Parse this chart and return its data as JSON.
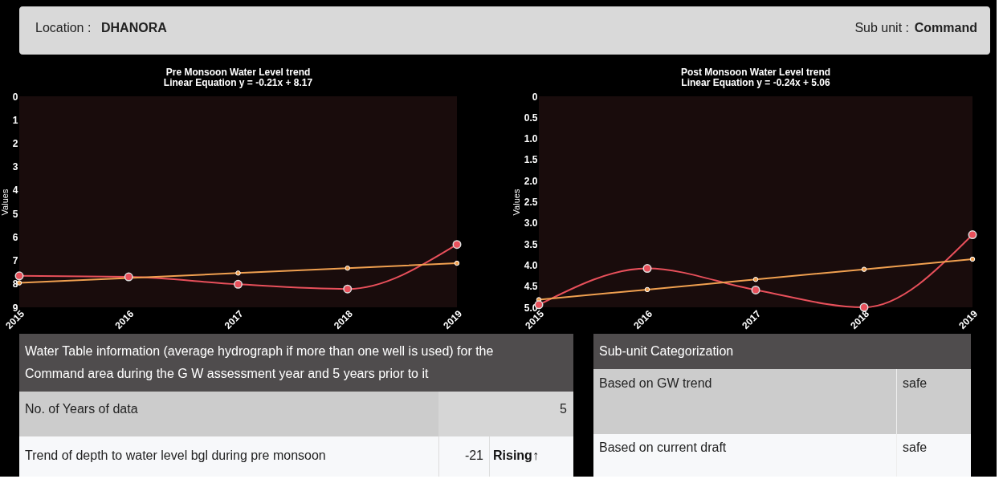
{
  "chart_data": [
    {
      "type": "other",
      "annotations": [
        "Location : ",
        "DHANORA",
        "Sub unit : ",
        "Command"
      ]
    },
    {
      "type": "line",
      "title": "Pre Monsoon Water Level trend",
      "subtitle": "Linear Equation y = -0.21x + 8.17",
      "ylabel": "Values",
      "categories": [
        "2015",
        "2016",
        "2017",
        "2018",
        "2019"
      ],
      "ylim": [
        9,
        0
      ],
      "yticks": [
        0,
        1,
        2,
        3,
        4,
        5,
        6,
        7,
        8,
        9
      ],
      "grid": false,
      "legend": false,
      "marker": "circle",
      "series": [
        {
          "color": "#e8505b",
          "values": [
            7.66,
            7.7,
            8.02,
            8.22,
            6.32
          ]
        },
        {
          "color": "#f0a050",
          "values": [
            7.96,
            7.75,
            7.54,
            7.33,
            7.12
          ]
        }
      ]
    },
    {
      "type": "line",
      "title": "Post Monsoon Water Level trend",
      "subtitle": "Linear Equation y = -0.24x + 5.06",
      "ylabel": "Values",
      "categories": [
        "2015",
        "2016",
        "2017",
        "2018",
        "2019"
      ],
      "ylim": [
        5,
        0
      ],
      "yticks": [
        0,
        0.5,
        {
          "value": 1,
          "label": "1.0"
        },
        1.5,
        {
          "value": 2,
          "label": "2.0"
        },
        2.5,
        {
          "value": 3,
          "label": "3.0"
        },
        3.5,
        {
          "value": 4,
          "label": "4.0"
        },
        4.5,
        {
          "value": 5,
          "label": "5.0"
        }
      ],
      "grid": false,
      "legend": false,
      "marker": "circle",
      "series": [
        {
          "color": "#e8505b",
          "values": [
            4.94,
            4.08,
            4.59,
            5.0,
            3.28
          ]
        },
        {
          "color": "#f0a050",
          "values": [
            4.82,
            4.58,
            4.34,
            4.1,
            3.86
          ]
        }
      ]
    },
    {
      "type": "other",
      "title": "Water Table information (average hydrograph if more than one well is used) for the Command area during the G W assessment year and 5 years prior to it",
      "annotations": [
        "No. of Years of data",
        "5",
        "Trend of depth to water level bgl during pre monsoon",
        "-21",
        "Rising↑"
      ]
    },
    {
      "type": "other",
      "title": "Sub-unit Categorization",
      "annotations": [
        "Based on GW trend",
        "safe",
        "Based on current draft",
        "safe"
      ]
    }
  ]
}
